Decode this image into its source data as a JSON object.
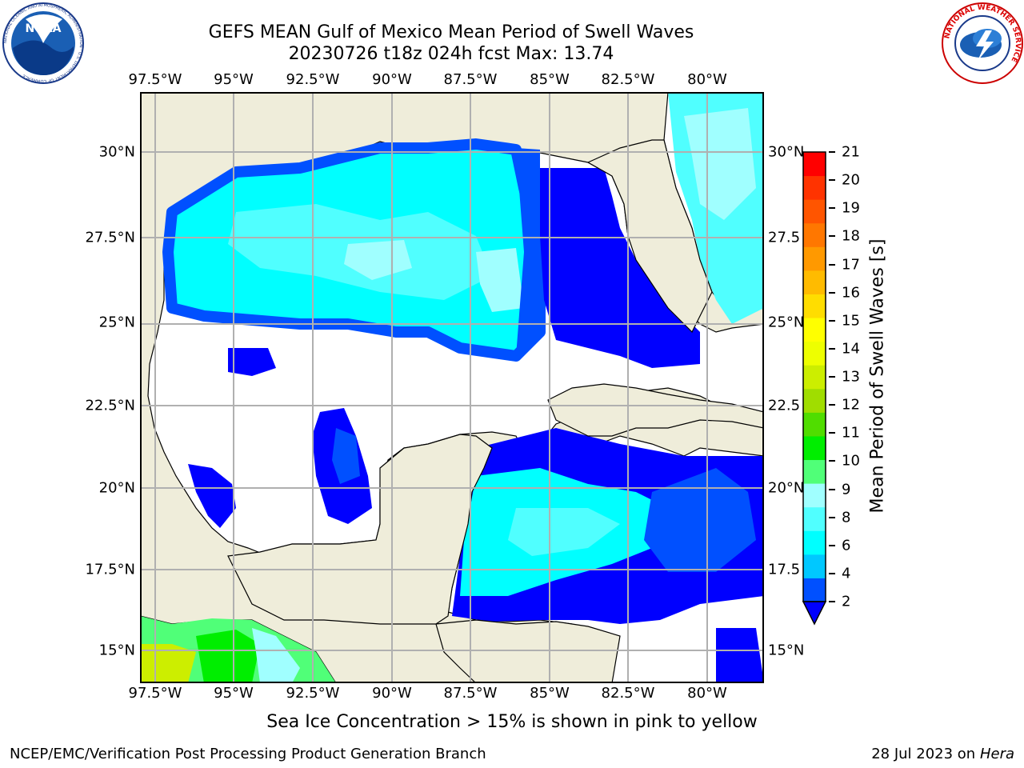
{
  "header": {
    "title_line1": "GEFS MEAN Gulf of Mexico Mean Period of Swell Waves",
    "title_line2": "20230726 t18z 024h fcst   Max: 13.74"
  },
  "logos": {
    "left": {
      "name": "noaa-logo",
      "text": "NOAA",
      "ring_text": "NATIONAL OCEANIC AND ATMOSPHERIC ADMINISTRATION · U.S. DEPARTMENT OF COMMERCE"
    },
    "right": {
      "name": "nws-logo",
      "ring_text": "NATIONAL WEATHER SERVICE"
    }
  },
  "map": {
    "lon_labels": [
      "97.5°W",
      "95°W",
      "92.5°W",
      "90°W",
      "87.5°W",
      "85°W",
      "82.5°W",
      "80°W"
    ],
    "lat_labels_left": [
      "30°N",
      "27.5°N",
      "25°N",
      "22.5°N",
      "20°N",
      "17.5°N",
      "15°N"
    ],
    "lat_labels_right": [
      "30°N",
      "27.5",
      "25°N",
      "22.5",
      "20°N",
      "17.5",
      "15°N"
    ],
    "colors": {
      "land": "#efedda",
      "no_data": "#ffffff",
      "grid": "#b0b0b0"
    }
  },
  "colorbar": {
    "label": "Mean Period of Swell Waves [s]",
    "ticks": [
      "2",
      "4",
      "6",
      "8",
      "9",
      "10",
      "11",
      "12",
      "13",
      "14",
      "15",
      "16",
      "17",
      "18",
      "19",
      "20",
      "21"
    ],
    "colors": [
      "#0050ff",
      "#00c8ff",
      "#00ffff",
      "#50ffff",
      "#a0ffff",
      "#50ff78",
      "#00ee00",
      "#50dd00",
      "#a0dd00",
      "#ccee00",
      "#eeff00",
      "#ffff00",
      "#ffdd00",
      "#ffbb00",
      "#ff9900",
      "#ff7700",
      "#ff5500",
      "#ff3300",
      "#ff0000"
    ],
    "extend_color": "#0000ff"
  },
  "footer": {
    "note": "Sea Ice Concentration > 15% is shown in pink to yellow",
    "credit": "NCEP/EMC/Verification Post Processing Product Generation Branch",
    "date": "28 Jul 2023 on ",
    "machine": "Hera"
  }
}
